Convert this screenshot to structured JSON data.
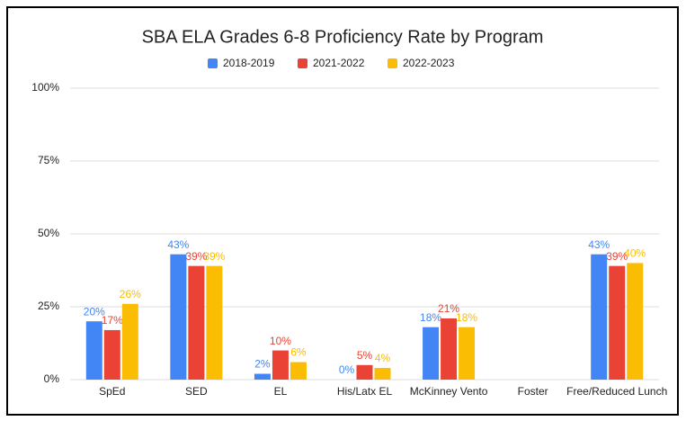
{
  "chart_data": {
    "type": "bar",
    "title": "SBA ELA Grades 6-8 Proficiency Rate by Program",
    "categories": [
      "SpEd",
      "SED",
      "EL",
      "His/Latx EL",
      "McKinney Vento",
      "Foster",
      "Free/Reduced Lunch"
    ],
    "series": [
      {
        "name": "2018-2019",
        "color": "#4285f4",
        "values": [
          20,
          43,
          2,
          0,
          18,
          null,
          43
        ],
        "value_labels": [
          "20%",
          "43%",
          "2%",
          "0%",
          "18%",
          null,
          "43%"
        ]
      },
      {
        "name": "2021-2022",
        "color": "#ea4335",
        "values": [
          17,
          39,
          10,
          5,
          21,
          null,
          39
        ],
        "value_labels": [
          "17%",
          "39%",
          "10%",
          "5%",
          "21%",
          null,
          "39%"
        ]
      },
      {
        "name": "2022-2023",
        "color": "#fbbc04",
        "values": [
          26,
          39,
          6,
          4,
          18,
          null,
          40
        ],
        "value_labels": [
          "26%",
          "39%",
          "6%",
          "4%",
          "18%",
          null,
          "40%"
        ]
      }
    ],
    "ylim": [
      0,
      100
    ],
    "yticks": [
      {
        "value": 0,
        "label": "0%"
      },
      {
        "value": 25,
        "label": "25%"
      },
      {
        "value": 50,
        "label": "50%"
      },
      {
        "value": 75,
        "label": "75%"
      },
      {
        "value": 100,
        "label": "100%"
      }
    ],
    "grid": true,
    "legend": "top"
  }
}
